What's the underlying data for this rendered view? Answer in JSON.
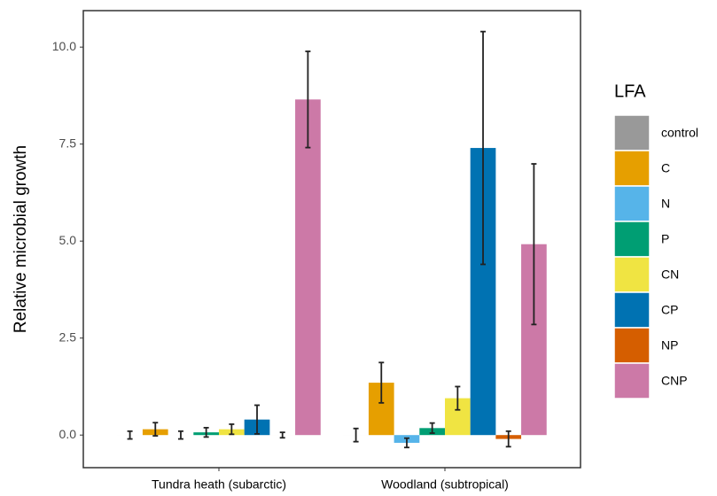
{
  "chart_data": {
    "type": "bar",
    "y_label": "Relative microbial growth",
    "categories": [
      "Tundra heath (subarctic)",
      "Woodland (subtropical)"
    ],
    "legend_title": "LFA",
    "legend_position": "right",
    "series": [
      {
        "name": "control",
        "color": "#999999",
        "values": [
          0,
          0
        ],
        "errors": [
          0.1,
          0.17
        ]
      },
      {
        "name": "C",
        "color": "#E69F00",
        "values": [
          0.15,
          1.35
        ],
        "errors": [
          0.17,
          0.52
        ]
      },
      {
        "name": "N",
        "color": "#56B4E9",
        "values": [
          0.0,
          -0.2
        ],
        "errors": [
          0.1,
          0.12
        ]
      },
      {
        "name": "P",
        "color": "#009E73",
        "values": [
          0.07,
          0.18
        ],
        "errors": [
          0.12,
          0.13
        ]
      },
      {
        "name": "CN",
        "color": "#F0E442",
        "values": [
          0.15,
          0.95
        ],
        "errors": [
          0.13,
          0.3
        ]
      },
      {
        "name": "CP",
        "color": "#0072B2",
        "values": [
          0.4,
          7.4
        ],
        "errors": [
          0.37,
          3.0
        ]
      },
      {
        "name": "NP",
        "color": "#D55E00",
        "values": [
          0.0,
          -0.1
        ],
        "errors": [
          0.07,
          0.2
        ]
      },
      {
        "name": "CNP",
        "color": "#CC79A7",
        "values": [
          8.65,
          4.92
        ],
        "errors": [
          1.24,
          2.07
        ]
      }
    ],
    "ylim": [
      -0.84,
      10.94
    ],
    "yticks": [
      {
        "value": 0,
        "label": "0.0"
      },
      2.5,
      {
        "value": 5,
        "label": "5.0"
      },
      7.5,
      {
        "value": 10,
        "label": "10.0"
      }
    ],
    "grid": false
  }
}
